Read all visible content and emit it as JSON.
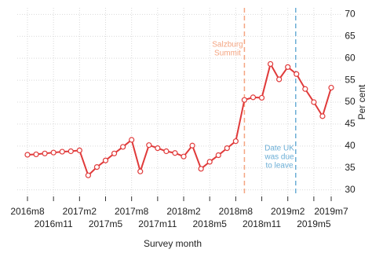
{
  "chart_data": {
    "type": "line",
    "x_label": "Survey month",
    "y_label": "Per cent",
    "categories": [
      "2016m8",
      null,
      null,
      "2016m11",
      null,
      null,
      "2017m2",
      null,
      null,
      "2017m5",
      null,
      null,
      "2017m8",
      null,
      null,
      "2017m11",
      null,
      null,
      "2018m2",
      null,
      null,
      "2018m5",
      null,
      null,
      "2018m8",
      null,
      null,
      "2018m11",
      null,
      null,
      "2019m2",
      null,
      null,
      "2019m5",
      null,
      "2019m7"
    ],
    "series": [
      {
        "name": null,
        "color": "#e03a3a",
        "values": [
          38,
          38.1,
          38.3,
          38.5,
          38.7,
          38.8,
          39,
          33.3,
          35.2,
          36.7,
          38.3,
          39.8,
          41.4,
          34.2,
          40.2,
          39.5,
          38.8,
          38.4,
          37.6,
          40.1,
          34.8,
          36.4,
          37.9,
          39.5,
          41.1,
          50.5,
          51.1,
          51,
          58.7,
          55.2,
          58,
          56.4,
          53,
          50,
          46.8,
          53.3
        ]
      }
    ],
    "ylim": [
      28.5,
      71.5
    ],
    "yticks": [
      30,
      35,
      40,
      45,
      50,
      55,
      60,
      65,
      70
    ],
    "grid": true,
    "annotations": [
      {
        "lines": [
          "Salzburg",
          "Summit"
        ],
        "color": "#f4a582"
      },
      {
        "lines": [
          "Date UK",
          "was due",
          "to leave"
        ],
        "color": "#6baed6"
      }
    ]
  }
}
